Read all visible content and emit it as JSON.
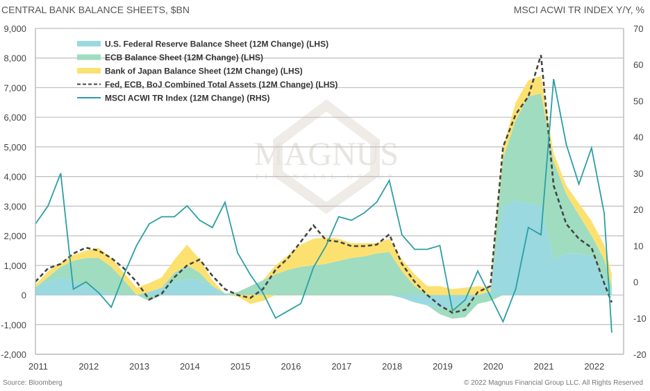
{
  "header": {
    "left_title": "CENTRAL BANK BALANCE SHEETS, $BN",
    "right_title": "MSCI ACWI TR INDEX Y/Y, %"
  },
  "footer": {
    "source": "Source: Bloomberg",
    "copyright": "© 2022 Magnus Financial Group LLC. All Rights Reserved"
  },
  "watermark": {
    "name": "MAGNUS",
    "sub": "FINANCIAL GROUP"
  },
  "colors": {
    "fed": "#9ad9df",
    "ecb": "#9fdcc0",
    "boj": "#fce171",
    "combined": "#444444",
    "msci": "#2a9ea6",
    "grid": "#bdbdbd"
  },
  "chart_data": {
    "type": "area",
    "title": "",
    "xlabel": "",
    "ylabel_left": "CENTRAL BANK BALANCE SHEETS, $BN",
    "ylabel_right": "MSCI ACWI TR INDEX Y/Y, %",
    "ylim_left": [
      -2000,
      9000
    ],
    "ylim_right": [
      -20,
      70
    ],
    "xlim": [
      2011.0,
      2022.9
    ],
    "grid": true,
    "legend_position": "top-left",
    "x_ticks": [
      "2011",
      "2012",
      "2013",
      "2014",
      "2015",
      "2016",
      "2017",
      "2018",
      "2019",
      "2020",
      "2021",
      "2022"
    ],
    "y_ticks_left": [
      "9,000",
      "8,000",
      "7,000",
      "6,000",
      "5,000",
      "4,000",
      "3,000",
      "2,000",
      "1,000",
      "0",
      "-1,000",
      "-2,000"
    ],
    "y_ticks_right": [
      "70",
      "60",
      "50",
      "40",
      "30",
      "20",
      "10",
      "0",
      "-10",
      "-20"
    ],
    "legend": [
      "U.S. Federal Reserve Balance Sheet (12M Change) (LHS)",
      "ECB Balance Sheet (12M Change) (LHS)",
      "Bank of Japan Balance Sheet (12M Change) (LHS)",
      "Fed, ECB, BoJ Combined Total Assets (12M Change) (LHS)",
      "MSCI ACWI TR Index (12M Change) (RHS)"
    ],
    "x": [
      2011.0,
      2011.25,
      2011.5,
      2011.75,
      2012.0,
      2012.25,
      2012.5,
      2012.75,
      2013.0,
      2013.25,
      2013.5,
      2013.75,
      2014.0,
      2014.25,
      2014.5,
      2014.75,
      2015.0,
      2015.25,
      2015.5,
      2015.75,
      2016.0,
      2016.25,
      2016.5,
      2016.75,
      2017.0,
      2017.25,
      2017.5,
      2017.75,
      2018.0,
      2018.25,
      2018.5,
      2018.75,
      2019.0,
      2019.25,
      2019.5,
      2019.75,
      2020.0,
      2020.25,
      2020.5,
      2020.75,
      2021.0,
      2021.25,
      2021.5,
      2021.75,
      2022.0,
      2022.25,
      2022.4
    ],
    "series": [
      {
        "name": "U.S. Federal Reserve Balance Sheet (12M Change) (LHS)",
        "axis": "left",
        "values": [
          250,
          450,
          600,
          450,
          300,
          150,
          50,
          0,
          0,
          100,
          250,
          450,
          550,
          500,
          300,
          50,
          0,
          0,
          0,
          0,
          0,
          0,
          0,
          0,
          0,
          0,
          0,
          0,
          0,
          -100,
          -250,
          -350,
          -450,
          -400,
          -250,
          0,
          100,
          3000,
          3200,
          3100,
          3000,
          1200,
          1400,
          1400,
          1300,
          600,
          0
        ]
      },
      {
        "name": "ECB Balance Sheet (12M Change) (LHS)",
        "axis": "left",
        "values": [
          0,
          150,
          350,
          700,
          950,
          1100,
          900,
          500,
          0,
          -200,
          0,
          300,
          450,
          250,
          0,
          0,
          100,
          300,
          500,
          700,
          850,
          950,
          1000,
          1050,
          1150,
          1250,
          1300,
          1400,
          1450,
          800,
          300,
          0,
          -200,
          -400,
          -500,
          -300,
          -200,
          1600,
          2700,
          3600,
          3800,
          3300,
          2000,
          1300,
          700,
          600,
          300
        ]
      },
      {
        "name": "Bank of Japan Balance Sheet (12M Change) (LHS)",
        "axis": "left",
        "values": [
          100,
          200,
          150,
          200,
          250,
          350,
          300,
          250,
          250,
          300,
          350,
          450,
          700,
          450,
          200,
          0,
          -50,
          -300,
          -200,
          300,
          500,
          750,
          900,
          900,
          750,
          500,
          450,
          350,
          450,
          400,
          400,
          300,
          300,
          200,
          250,
          300,
          150,
          400,
          600,
          550,
          600,
          300,
          300,
          400,
          500,
          500,
          400
        ]
      },
      {
        "name": "Fed, ECB, BoJ Combined Total Assets (12M Change) (LHS)",
        "axis": "left",
        "values": [
          450,
          900,
          1050,
          1400,
          1600,
          1500,
          1250,
          900,
          450,
          -150,
          50,
          600,
          1000,
          1200,
          650,
          200,
          0,
          -100,
          200,
          850,
          1250,
          1800,
          2350,
          1850,
          1800,
          1650,
          1650,
          1700,
          2050,
          1050,
          450,
          0,
          -350,
          -600,
          -500,
          100,
          300,
          5000,
          6100,
          6700,
          8100,
          3700,
          2400,
          1900,
          1600,
          400,
          -250
        ]
      },
      {
        "name": "MSCI ACWI TR Index (12M Change) (RHS)",
        "axis": "right",
        "values": [
          16,
          21,
          30,
          -2,
          0,
          -3,
          -7,
          2,
          10,
          16,
          18,
          18,
          21,
          17,
          15,
          22,
          8,
          2,
          -3,
          -10,
          -8,
          -6,
          4,
          10,
          18,
          17,
          19,
          22,
          28,
          13,
          9,
          9,
          10,
          -8,
          -5,
          3,
          -4,
          -11,
          -2,
          15,
          13,
          56,
          38,
          27,
          37,
          19,
          -14
        ]
      }
    ]
  }
}
